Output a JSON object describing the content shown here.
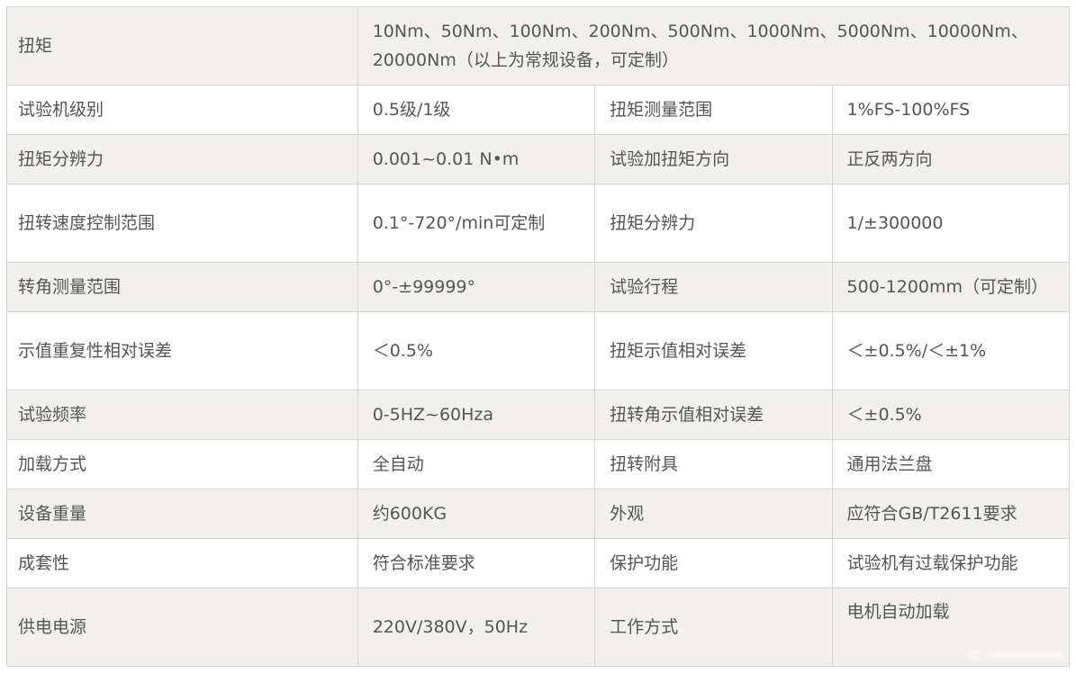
{
  "rows": [
    {
      "label": "扭矩",
      "value": "10Nm、50Nm、100Nm、200Nm、500Nm、1000Nm、5000Nm、10000Nm、20000Nm（以上为常规设备，可定制）"
    },
    {
      "label": "试验机级别",
      "value": "0.5级/1级",
      "label2": "扭矩测量范围",
      "value2": "1%FS-100%FS"
    },
    {
      "label": "扭矩分辨力",
      "value": "0.001~0.01 N•m",
      "label2": "试验加扭矩方向",
      "value2": "正反两方向"
    },
    {
      "label": "扭转速度控制范围",
      "value": "0.1°-720°/min可定制",
      "label2": "扭矩分辨力",
      "value2": "1/±300000"
    },
    {
      "label": "转角测量范围",
      "value": "0°-±99999°",
      "label2": "试验行程",
      "value2": "500-1200mm（可定制）"
    },
    {
      "label": "示值重复性相对误差",
      "value": "＜0.5%",
      "label2": "扭矩示值相对误差",
      "value2": "＜±0.5%/＜±1%"
    },
    {
      "label": "试验频率",
      "value": "0-5HZ~60Hza",
      "label2": "扭转角示值相对误差",
      "value2": "＜±0.5%"
    },
    {
      "label": "加载方式",
      "value": "全自动",
      "label2": "扭转附具",
      "value2": "通用法兰盘"
    },
    {
      "label": "设备重量",
      "value": "约600KG",
      "label2": "外观",
      "value2": "应符合GB/T2611要求"
    },
    {
      "label": "成套性",
      "value": "符合标准要求",
      "label2": "保护功能",
      "value2": "试验机有过载保护功能"
    },
    {
      "label": "供电电源",
      "value": "220V/380V，50Hz",
      "label2": "工作方式",
      "value2": "电机自动加载"
    }
  ]
}
